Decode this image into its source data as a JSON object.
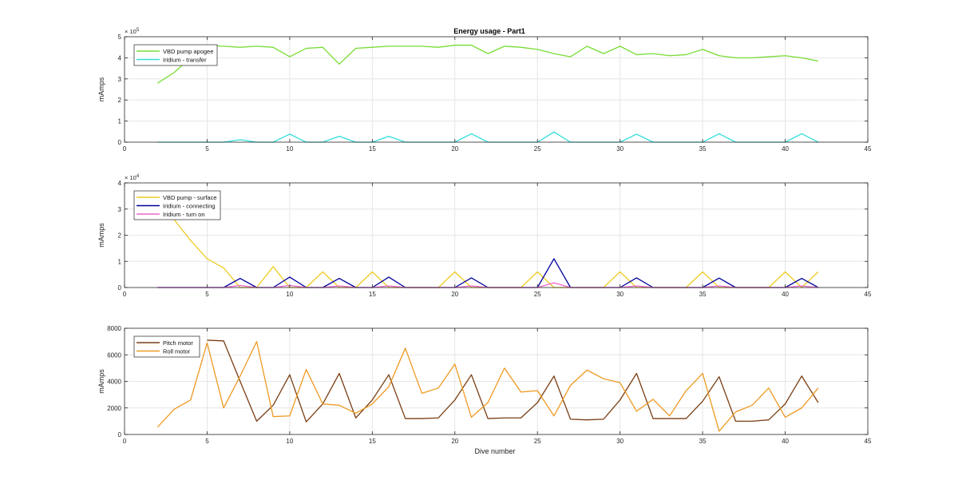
{
  "figure": {
    "title": "Energy usage - Part1",
    "xlabel": "Dive number"
  },
  "chart_data": [
    {
      "type": "line",
      "title": "Energy usage - Part1",
      "ylabel": "mAmps",
      "exponent_label": "× 10",
      "exponent_power": "5",
      "exponent_scale": 100000,
      "xlim": [
        0,
        45
      ],
      "ylim": [
        0,
        500000
      ],
      "xticks": [
        "0",
        "5",
        "10",
        "15",
        "20",
        "25",
        "30",
        "35",
        "40",
        "45"
      ],
      "yticks": [
        "0",
        "1",
        "2",
        "3",
        "4",
        "5"
      ],
      "grid": true,
      "legend_position": "top-left",
      "x": [
        2,
        3,
        4,
        5,
        6,
        7,
        8,
        9,
        10,
        11,
        12,
        13,
        14,
        15,
        16,
        17,
        18,
        19,
        20,
        21,
        22,
        23,
        24,
        25,
        26,
        27,
        28,
        29,
        30,
        31,
        32,
        33,
        34,
        35,
        36,
        37,
        38,
        39,
        40,
        41,
        42
      ],
      "series": [
        {
          "name": "VBD pump apogee",
          "color": "#77dd33",
          "values": [
            280000,
            330000,
            400000,
            460000,
            455000,
            450000,
            455000,
            450000,
            405000,
            445000,
            450000,
            370000,
            445000,
            450000,
            455000,
            455000,
            455000,
            450000,
            460000,
            460000,
            420000,
            455000,
            450000,
            440000,
            420000,
            405000,
            455000,
            420000,
            455000,
            415000,
            420000,
            410000,
            415000,
            440000,
            410000,
            400000,
            400000,
            405000,
            410000,
            400000,
            385000
          ]
        },
        {
          "name": "Iridium - transfer",
          "color": "#33dddd",
          "values": [
            0,
            0,
            0,
            0,
            0,
            12000,
            0,
            0,
            38000,
            0,
            0,
            28000,
            0,
            0,
            28000,
            0,
            0,
            0,
            0,
            40000,
            0,
            0,
            0,
            0,
            48000,
            0,
            0,
            0,
            0,
            38000,
            0,
            0,
            0,
            0,
            40000,
            0,
            0,
            0,
            0,
            40000,
            0
          ]
        }
      ]
    },
    {
      "type": "line",
      "ylabel": "mAmps",
      "exponent_label": "× 10",
      "exponent_power": "4",
      "exponent_scale": 10000,
      "xlim": [
        0,
        45
      ],
      "ylim": [
        0,
        40000
      ],
      "xticks": [
        "0",
        "5",
        "10",
        "15",
        "20",
        "25",
        "30",
        "35",
        "40",
        "45"
      ],
      "yticks": [
        "0",
        "1",
        "2",
        "3",
        "4"
      ],
      "grid": true,
      "legend_position": "top-left",
      "x": [
        2,
        3,
        4,
        5,
        6,
        7,
        8,
        9,
        10,
        11,
        12,
        13,
        14,
        15,
        16,
        17,
        18,
        19,
        20,
        21,
        22,
        23,
        24,
        25,
        26,
        27,
        28,
        29,
        30,
        31,
        32,
        33,
        34,
        35,
        36,
        37,
        38,
        39,
        40,
        41,
        42
      ],
      "series": [
        {
          "name": "VBD pump - surface",
          "color": "#eecc22",
          "values": [
            36000,
            26000,
            18000,
            11000,
            7500,
            0,
            0,
            8000,
            0,
            0,
            6000,
            0,
            0,
            6000,
            0,
            0,
            0,
            0,
            6000,
            0,
            0,
            0,
            0,
            6000,
            0,
            0,
            0,
            0,
            6000,
            0,
            0,
            0,
            0,
            6000,
            0,
            0,
            0,
            0,
            6000,
            0,
            6000
          ]
        },
        {
          "name": "Iridium - connecting",
          "color": "#000099",
          "values": [
            0,
            0,
            0,
            0,
            0,
            3500,
            0,
            0,
            4000,
            0,
            0,
            3500,
            0,
            0,
            4000,
            0,
            0,
            0,
            0,
            3700,
            0,
            0,
            0,
            0,
            11000,
            0,
            0,
            0,
            0,
            3700,
            0,
            0,
            0,
            0,
            3600,
            0,
            0,
            0,
            0,
            3500,
            0
          ]
        },
        {
          "name": "Iridium - turn on",
          "color": "#ee66cc",
          "values": [
            0,
            0,
            0,
            0,
            0,
            800,
            0,
            0,
            800,
            0,
            0,
            600,
            0,
            0,
            600,
            0,
            0,
            0,
            0,
            600,
            0,
            0,
            0,
            0,
            1800,
            0,
            0,
            0,
            0,
            600,
            0,
            0,
            0,
            0,
            600,
            0,
            0,
            0,
            0,
            600,
            0
          ]
        }
      ]
    },
    {
      "type": "line",
      "ylabel": "mAmps",
      "xlabel": "Dive number",
      "xlim": [
        0,
        45
      ],
      "ylim": [
        0,
        8000
      ],
      "xticks": [
        "0",
        "5",
        "10",
        "15",
        "20",
        "25",
        "30",
        "35",
        "40",
        "45"
      ],
      "yticks": [
        "0",
        "2000",
        "4000",
        "6000",
        "8000"
      ],
      "grid": true,
      "legend_position": "top-left",
      "x": [
        2,
        3,
        4,
        5,
        6,
        7,
        8,
        9,
        10,
        11,
        12,
        13,
        14,
        15,
        16,
        17,
        18,
        19,
        20,
        21,
        22,
        23,
        24,
        25,
        26,
        27,
        28,
        29,
        30,
        31,
        32,
        33,
        34,
        35,
        36,
        37,
        38,
        39,
        40,
        41,
        42
      ],
      "series": [
        {
          "name": "Pitch motor",
          "color": "#7a3e14",
          "values": [
            null,
            null,
            null,
            7100,
            7050,
            4000,
            1000,
            2200,
            4500,
            950,
            2300,
            4600,
            1250,
            2600,
            4500,
            1200,
            1200,
            1250,
            2600,
            4500,
            1200,
            1250,
            1250,
            2400,
            4400,
            1150,
            1100,
            1150,
            2600,
            4600,
            1200,
            1200,
            1200,
            2500,
            4350,
            1000,
            1000,
            1100,
            2300,
            4400,
            2400
          ]
        },
        {
          "name": "Roll motor",
          "color": "#ee9922",
          "values": [
            550,
            1900,
            2600,
            6900,
            2000,
            4400,
            7000,
            1350,
            1400,
            4900,
            2300,
            2200,
            1600,
            2300,
            3600,
            6500,
            3100,
            3500,
            5300,
            1300,
            2400,
            5000,
            3200,
            3300,
            1400,
            3700,
            4850,
            4200,
            3900,
            1750,
            2650,
            1400,
            3300,
            4600,
            250,
            1700,
            2200,
            3500,
            1300,
            2000,
            3500
          ]
        }
      ]
    }
  ]
}
